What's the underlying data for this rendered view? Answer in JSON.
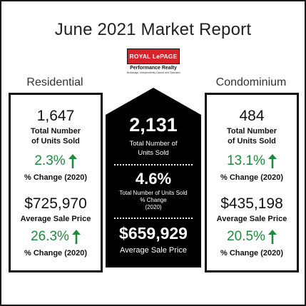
{
  "title": "June 2021 Market Report",
  "logo": {
    "brand": "ROYAL LePAGE",
    "subtitle": "Performance Realty",
    "tagline": "Brokerage, Independently Owned and Operated"
  },
  "residential": {
    "label": "Residential",
    "units_sold": "1,647",
    "units_sold_label_line1": "Total Number",
    "units_sold_label_line2": "of Units Sold",
    "units_change": "2.3%",
    "units_change_label": "% Change (2020)",
    "avg_price": "$725,970",
    "avg_price_label": "Average Sale Price",
    "price_change": "26.3%",
    "price_change_label": "% Change (2020)"
  },
  "total": {
    "units_sold": "2,131",
    "units_sold_label_line1": "Total Number of",
    "units_sold_label_line2": "Units Sold",
    "units_change": "4.6%",
    "units_change_label_line1": "Total Number of Units Sold",
    "units_change_label_line2": "% Change",
    "units_change_label_line3": "(2020)",
    "avg_price": "$659,929",
    "avg_price_label": "Average Sale Price"
  },
  "condominium": {
    "label": "Condominium",
    "units_sold": "484",
    "units_sold_label_line1": "Total Number",
    "units_sold_label_line2": "of Units Sold",
    "units_change": "13.1%",
    "units_change_label": "% Change (2020)",
    "avg_price": "$435,198",
    "avg_price_label": "Average Sale Price",
    "price_change": "20.5%",
    "price_change_label": "% Change (2020)"
  },
  "colors": {
    "logo_red": "#d8232a",
    "increase_green": "#1e8a3c",
    "center_fill": "#000000",
    "border": "#111111"
  },
  "icons": {
    "change_indicator": "up-arrow-icon"
  }
}
